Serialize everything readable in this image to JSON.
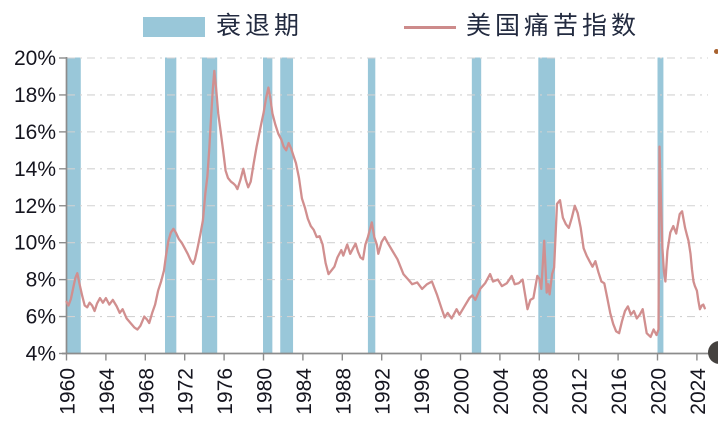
{
  "legend": {
    "recession_label": "衰退期",
    "line_label": "美国痛苦指数"
  },
  "chart_data": {
    "type": "line",
    "title": "",
    "xlabel": "",
    "ylabel": "",
    "unit": "%",
    "grid": "horizontal-dashed",
    "legend_position": "top",
    "colors": {
      "recession_band": "#99c7d9",
      "line": "#d18f8f",
      "axis": "#8c8c8c",
      "gridline": "#d2d2d2",
      "tick_text": "#15151f"
    },
    "y_axis": {
      "range": [
        4,
        20
      ],
      "ticks": [
        {
          "v": 20,
          "label": "20%"
        },
        {
          "v": 18,
          "label": "18%"
        },
        {
          "v": 16,
          "label": "16%"
        },
        {
          "v": 14,
          "label": "14%"
        },
        {
          "v": 12,
          "label": "12%"
        },
        {
          "v": 10,
          "label": "10%"
        },
        {
          "v": 8,
          "label": "8%"
        },
        {
          "v": 6,
          "label": "6%"
        },
        {
          "v": 4,
          "label": "4%"
        }
      ]
    },
    "x_axis": {
      "range": [
        1960,
        2025.3
      ],
      "ticks": [
        {
          "v": 1960,
          "label": "1960"
        },
        {
          "v": 1964,
          "label": "1964"
        },
        {
          "v": 1968,
          "label": "1968"
        },
        {
          "v": 1972,
          "label": "1972"
        },
        {
          "v": 1976,
          "label": "1976"
        },
        {
          "v": 1980,
          "label": "1980"
        },
        {
          "v": 1984,
          "label": "1984"
        },
        {
          "v": 1988,
          "label": "1988"
        },
        {
          "v": 1992,
          "label": "1992"
        },
        {
          "v": 1996,
          "label": "1996"
        },
        {
          "v": 2000,
          "label": "2000"
        },
        {
          "v": 2004,
          "label": "2004"
        },
        {
          "v": 2008,
          "label": "2008"
        },
        {
          "v": 2012,
          "label": "2012"
        },
        {
          "v": 2016,
          "label": "2016"
        },
        {
          "v": 2020,
          "label": "2020"
        },
        {
          "v": 2024,
          "label": "2024"
        }
      ]
    },
    "recession_bands": {
      "name": "衰退期",
      "ranges": [
        [
          1960.0,
          1961.45
        ],
        [
          1970.0,
          1971.15
        ],
        [
          1973.75,
          1975.3
        ],
        [
          1979.95,
          1980.9
        ],
        [
          1981.7,
          1983.0
        ],
        [
          1990.6,
          1991.35
        ],
        [
          2001.15,
          2002.1
        ],
        [
          2007.9,
          2009.6
        ],
        [
          2020.0,
          2020.6
        ]
      ]
    },
    "series": [
      {
        "name": "美国痛苦指数",
        "color": "#d18f8f",
        "points": [
          [
            1960.0,
            6.8
          ],
          [
            1960.2,
            6.6
          ],
          [
            1960.45,
            6.95
          ],
          [
            1960.7,
            7.6
          ],
          [
            1960.9,
            8.1
          ],
          [
            1961.1,
            8.35
          ],
          [
            1961.35,
            7.7
          ],
          [
            1961.6,
            7.1
          ],
          [
            1961.85,
            6.6
          ],
          [
            1962.1,
            6.5
          ],
          [
            1962.35,
            6.75
          ],
          [
            1962.6,
            6.6
          ],
          [
            1962.85,
            6.3
          ],
          [
            1963.1,
            6.7
          ],
          [
            1963.4,
            7.0
          ],
          [
            1963.7,
            6.75
          ],
          [
            1964.0,
            7.0
          ],
          [
            1964.35,
            6.65
          ],
          [
            1964.7,
            6.9
          ],
          [
            1965.1,
            6.55
          ],
          [
            1965.4,
            6.2
          ],
          [
            1965.7,
            6.4
          ],
          [
            1966.1,
            5.9
          ],
          [
            1966.5,
            5.65
          ],
          [
            1966.9,
            5.4
          ],
          [
            1967.2,
            5.3
          ],
          [
            1967.5,
            5.5
          ],
          [
            1967.9,
            6.0
          ],
          [
            1968.15,
            5.85
          ],
          [
            1968.4,
            5.65
          ],
          [
            1968.7,
            6.2
          ],
          [
            1969.0,
            6.65
          ],
          [
            1969.3,
            7.4
          ],
          [
            1969.6,
            7.9
          ],
          [
            1969.9,
            8.5
          ],
          [
            1970.1,
            9.3
          ],
          [
            1970.35,
            10.1
          ],
          [
            1970.6,
            10.55
          ],
          [
            1970.85,
            10.75
          ],
          [
            1971.1,
            10.55
          ],
          [
            1971.4,
            10.2
          ],
          [
            1971.7,
            10.0
          ],
          [
            1972.0,
            9.7
          ],
          [
            1972.3,
            9.4
          ],
          [
            1972.6,
            9.05
          ],
          [
            1972.85,
            8.85
          ],
          [
            1973.05,
            9.1
          ],
          [
            1973.3,
            9.7
          ],
          [
            1973.6,
            10.5
          ],
          [
            1973.85,
            11.2
          ],
          [
            1974.1,
            12.7
          ],
          [
            1974.3,
            13.6
          ],
          [
            1974.5,
            15.1
          ],
          [
            1974.7,
            17.0
          ],
          [
            1974.85,
            18.3
          ],
          [
            1975.0,
            19.3
          ],
          [
            1975.2,
            18.3
          ],
          [
            1975.4,
            17.0
          ],
          [
            1975.6,
            16.2
          ],
          [
            1975.9,
            15.0
          ],
          [
            1976.15,
            13.9
          ],
          [
            1976.4,
            13.5
          ],
          [
            1976.7,
            13.3
          ],
          [
            1976.95,
            13.2
          ],
          [
            1977.15,
            13.1
          ],
          [
            1977.35,
            12.9
          ],
          [
            1977.65,
            13.4
          ],
          [
            1977.95,
            14.0
          ],
          [
            1978.2,
            13.4
          ],
          [
            1978.45,
            13.0
          ],
          [
            1978.7,
            13.3
          ],
          [
            1979.0,
            14.3
          ],
          [
            1979.3,
            15.2
          ],
          [
            1979.6,
            16.0
          ],
          [
            1979.8,
            16.5
          ],
          [
            1980.0,
            17.0
          ],
          [
            1980.25,
            17.8
          ],
          [
            1980.5,
            18.4
          ],
          [
            1980.7,
            17.8
          ],
          [
            1980.9,
            17.0
          ],
          [
            1981.2,
            16.4
          ],
          [
            1981.5,
            15.9
          ],
          [
            1981.8,
            15.6
          ],
          [
            1982.05,
            15.2
          ],
          [
            1982.3,
            15.0
          ],
          [
            1982.55,
            15.4
          ],
          [
            1982.8,
            15.1
          ],
          [
            1983.05,
            14.7
          ],
          [
            1983.3,
            14.3
          ],
          [
            1983.6,
            13.5
          ],
          [
            1983.9,
            12.4
          ],
          [
            1984.2,
            11.9
          ],
          [
            1984.5,
            11.3
          ],
          [
            1984.8,
            10.9
          ],
          [
            1985.1,
            10.7
          ],
          [
            1985.4,
            10.3
          ],
          [
            1985.7,
            10.35
          ],
          [
            1986.0,
            9.9
          ],
          [
            1986.3,
            8.9
          ],
          [
            1986.6,
            8.3
          ],
          [
            1986.9,
            8.5
          ],
          [
            1987.2,
            8.7
          ],
          [
            1987.5,
            9.2
          ],
          [
            1987.9,
            9.6
          ],
          [
            1988.1,
            9.3
          ],
          [
            1988.5,
            9.9
          ],
          [
            1988.8,
            9.4
          ],
          [
            1989.1,
            9.7
          ],
          [
            1989.35,
            9.95
          ],
          [
            1989.6,
            9.5
          ],
          [
            1989.85,
            9.2
          ],
          [
            1990.1,
            9.1
          ],
          [
            1990.35,
            9.9
          ],
          [
            1990.6,
            10.3
          ],
          [
            1990.85,
            10.8
          ],
          [
            1991.0,
            11.1
          ],
          [
            1991.25,
            10.3
          ],
          [
            1991.5,
            9.9
          ],
          [
            1991.65,
            9.4
          ],
          [
            1992.0,
            10.05
          ],
          [
            1992.3,
            10.3
          ],
          [
            1992.6,
            10.0
          ],
          [
            1993.1,
            9.55
          ],
          [
            1993.6,
            9.1
          ],
          [
            1994.2,
            8.3
          ],
          [
            1994.7,
            8.0
          ],
          [
            1995.1,
            7.75
          ],
          [
            1995.6,
            7.85
          ],
          [
            1996.1,
            7.5
          ],
          [
            1996.6,
            7.75
          ],
          [
            1997.1,
            7.9
          ],
          [
            1997.6,
            7.2
          ],
          [
            1998.1,
            6.4
          ],
          [
            1998.4,
            5.95
          ],
          [
            1998.7,
            6.2
          ],
          [
            1999.1,
            5.9
          ],
          [
            1999.6,
            6.4
          ],
          [
            1999.9,
            6.1
          ],
          [
            2000.4,
            6.55
          ],
          [
            2000.9,
            7.0
          ],
          [
            2001.2,
            7.15
          ],
          [
            2001.5,
            6.9
          ],
          [
            2002.0,
            7.5
          ],
          [
            2002.5,
            7.8
          ],
          [
            2003.0,
            8.3
          ],
          [
            2003.3,
            7.9
          ],
          [
            2003.8,
            8.0
          ],
          [
            2004.2,
            7.65
          ],
          [
            2004.7,
            7.8
          ],
          [
            2005.2,
            8.2
          ],
          [
            2005.5,
            7.75
          ],
          [
            2005.9,
            7.8
          ],
          [
            2006.3,
            8.0
          ],
          [
            2006.8,
            6.4
          ],
          [
            2007.1,
            6.9
          ],
          [
            2007.4,
            7.0
          ],
          [
            2007.8,
            8.2
          ],
          [
            2008.0,
            8.05
          ],
          [
            2008.2,
            7.5
          ],
          [
            2008.5,
            10.1
          ],
          [
            2008.75,
            7.3
          ],
          [
            2008.9,
            7.75
          ],
          [
            2009.05,
            7.2
          ],
          [
            2009.3,
            8.3
          ],
          [
            2009.5,
            8.65
          ],
          [
            2009.8,
            12.1
          ],
          [
            2010.1,
            12.3
          ],
          [
            2010.4,
            11.35
          ],
          [
            2010.7,
            11.0
          ],
          [
            2011.0,
            10.8
          ],
          [
            2011.3,
            11.35
          ],
          [
            2011.6,
            12.0
          ],
          [
            2011.9,
            11.6
          ],
          [
            2012.2,
            10.8
          ],
          [
            2012.5,
            9.7
          ],
          [
            2012.8,
            9.3
          ],
          [
            2013.1,
            9.0
          ],
          [
            2013.4,
            8.7
          ],
          [
            2013.7,
            9.0
          ],
          [
            2014.0,
            8.4
          ],
          [
            2014.3,
            7.9
          ],
          [
            2014.6,
            7.8
          ],
          [
            2014.9,
            7.0
          ],
          [
            2015.2,
            6.2
          ],
          [
            2015.5,
            5.6
          ],
          [
            2015.8,
            5.2
          ],
          [
            2016.1,
            5.1
          ],
          [
            2016.4,
            5.75
          ],
          [
            2016.7,
            6.3
          ],
          [
            2017.0,
            6.55
          ],
          [
            2017.3,
            6.1
          ],
          [
            2017.6,
            6.3
          ],
          [
            2017.9,
            5.9
          ],
          [
            2018.2,
            6.1
          ],
          [
            2018.5,
            6.4
          ],
          [
            2018.9,
            5.1
          ],
          [
            2019.3,
            4.9
          ],
          [
            2019.6,
            5.3
          ],
          [
            2019.9,
            5.0
          ],
          [
            2020.1,
            5.3
          ],
          [
            2020.2,
            15.2
          ],
          [
            2020.35,
            12.4
          ],
          [
            2020.5,
            9.7
          ],
          [
            2020.65,
            8.45
          ],
          [
            2020.8,
            7.9
          ],
          [
            2021.0,
            9.55
          ],
          [
            2021.3,
            10.55
          ],
          [
            2021.6,
            10.9
          ],
          [
            2021.9,
            10.5
          ],
          [
            2022.25,
            11.55
          ],
          [
            2022.5,
            11.7
          ],
          [
            2022.8,
            10.8
          ],
          [
            2023.0,
            10.4
          ],
          [
            2023.15,
            10.1
          ],
          [
            2023.35,
            9.4
          ],
          [
            2023.5,
            8.55
          ],
          [
            2023.65,
            7.9
          ],
          [
            2023.8,
            7.65
          ],
          [
            2024.0,
            7.4
          ],
          [
            2024.15,
            6.85
          ],
          [
            2024.3,
            6.4
          ],
          [
            2024.5,
            6.6
          ],
          [
            2024.65,
            6.65
          ],
          [
            2024.8,
            6.45
          ]
        ]
      }
    ]
  },
  "artifacts": {
    "top_right_dot_color": "#a8622f",
    "bottom_right_circle_color": "#454240"
  }
}
